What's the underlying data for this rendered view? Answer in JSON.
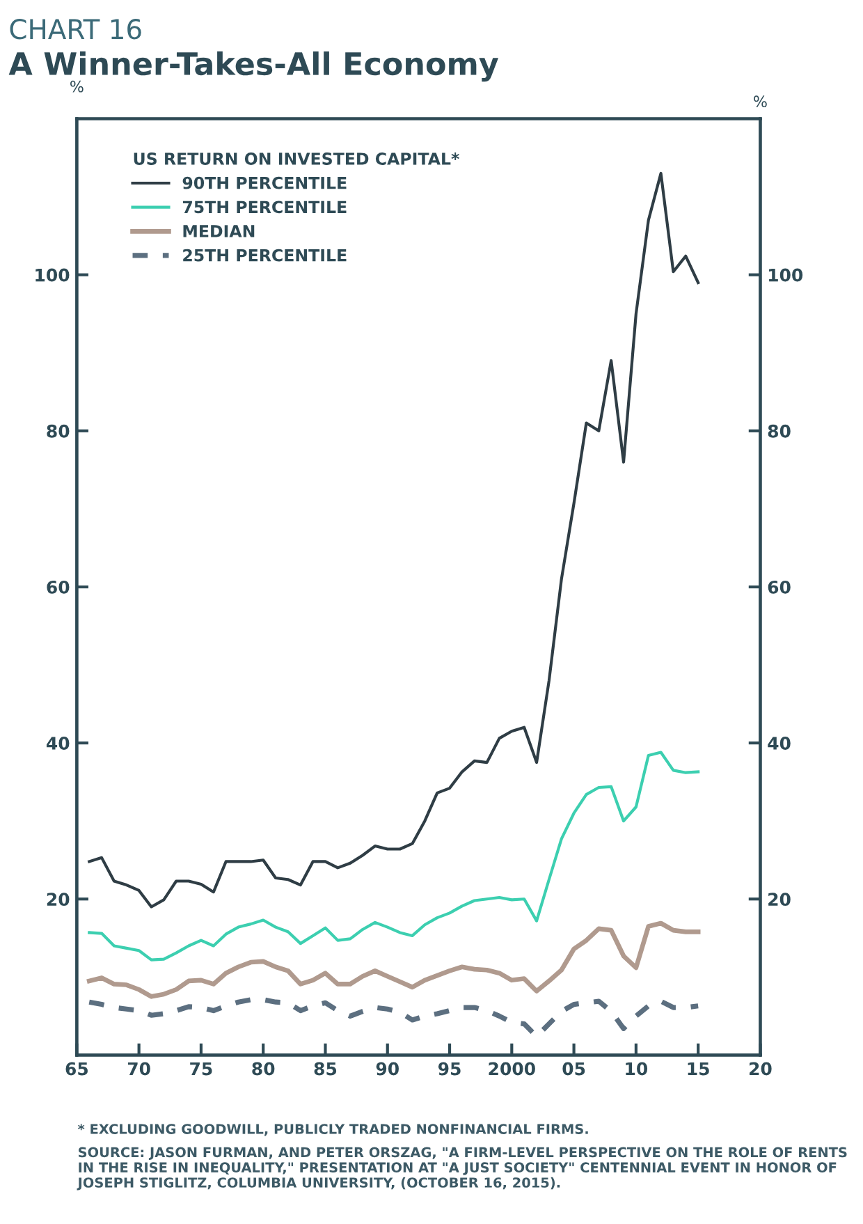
{
  "chart_data": {
    "type": "line",
    "subtitle": "CHART 16",
    "title": "A Winner-Takes-All Economy",
    "ylabel": "%",
    "y2label": "%",
    "legend_title": "US RETURN ON INVESTED CAPITAL*",
    "x": [
      1966,
      1967,
      1968,
      1969,
      1970,
      1971,
      1972,
      1973,
      1974,
      1975,
      1976,
      1977,
      1978,
      1979,
      1980,
      1981,
      1982,
      1983,
      1984,
      1985,
      1986,
      1987,
      1988,
      1989,
      1990,
      1991,
      1992,
      1993,
      1994,
      1995,
      1996,
      1997,
      1998,
      1999,
      2000,
      2001,
      2002,
      2003,
      2004,
      2005,
      2006,
      2007,
      2008,
      2009,
      2010,
      2011,
      2012,
      2013,
      2014,
      2015
    ],
    "series": [
      {
        "name": "90TH PERCENTILE",
        "color": "#2f3d45",
        "line_style": "solid",
        "values": [
          24.8,
          25.3,
          22.3,
          21.8,
          21.1,
          19,
          19.9,
          22.3,
          22.3,
          21.9,
          20.9,
          24.8,
          24.8,
          24.8,
          25,
          22.7,
          22.5,
          21.8,
          24.8,
          24.8,
          24,
          24.6,
          25.6,
          26.8,
          26.4,
          26.4,
          27.1,
          30,
          33.6,
          34.2,
          36.3,
          37.7,
          37.5,
          40.6,
          41.5,
          42,
          37.5,
          48,
          61,
          70.7,
          81,
          80,
          89,
          76,
          95,
          107,
          113,
          100.4,
          102.4,
          99
        ]
      },
      {
        "name": "75TH PERCENTILE",
        "color": "#3ccfb0",
        "line_style": "solid",
        "values": [
          15.7,
          15.6,
          14,
          13.7,
          13.4,
          12.2,
          12.3,
          13.1,
          14,
          14.7,
          14,
          15.5,
          16.4,
          16.8,
          17.3,
          16.4,
          15.8,
          14.3,
          15.3,
          16.3,
          14.7,
          14.9,
          16.1,
          17,
          16.4,
          15.7,
          15.3,
          16.7,
          17.6,
          18.2,
          19.1,
          19.8,
          20,
          20.2,
          19.9,
          20,
          17.2,
          22.5,
          27.7,
          31,
          33.4,
          34.3,
          34.4,
          30,
          31.8,
          38.4,
          38.8,
          36.5,
          36.2,
          36.3
        ]
      },
      {
        "name": "MEDIAN",
        "color": "#b09a8e",
        "line_style": "solid",
        "values": [
          9.5,
          9.9,
          9.1,
          9,
          8.4,
          7.5,
          7.8,
          8.4,
          9.5,
          9.6,
          9.1,
          10.5,
          11.3,
          11.9,
          12,
          11.3,
          10.8,
          9.1,
          9.6,
          10.5,
          9.1,
          9.1,
          10.1,
          10.8,
          10.1,
          9.4,
          8.7,
          9.6,
          10.2,
          10.8,
          11.3,
          11,
          10.9,
          10.5,
          9.6,
          9.8,
          8.2,
          9.5,
          10.9,
          13.6,
          14.7,
          16.2,
          16,
          12.7,
          11.2,
          16.5,
          16.9,
          16,
          15.8,
          15.8
        ]
      },
      {
        "name": "25TH PERCENTILE",
        "color": "#5c6f80",
        "line_style": "dashed",
        "values": [
          6.8,
          6.5,
          6.1,
          5.9,
          5.7,
          5.1,
          5.3,
          5.7,
          6.2,
          6.1,
          5.7,
          6.3,
          6.8,
          7.1,
          7.1,
          6.8,
          6.7,
          5.7,
          6.3,
          6.7,
          5.7,
          5,
          5.6,
          6.1,
          5.9,
          5.5,
          4.5,
          5,
          5.3,
          5.7,
          6.1,
          6.1,
          5.7,
          5,
          4.2,
          4,
          2.4,
          4,
          5.6,
          6.5,
          6.7,
          6.9,
          5.6,
          3.4,
          5,
          6.3,
          6.9,
          6.1,
          6.1,
          6.3
        ]
      }
    ],
    "xlim": [
      1965,
      2020
    ],
    "xticks": [
      {
        "value": 1965,
        "label": "65"
      },
      {
        "value": 1970,
        "label": "70"
      },
      {
        "value": 1975,
        "label": "75"
      },
      {
        "value": 1980,
        "label": "80"
      },
      {
        "value": 1985,
        "label": "85"
      },
      {
        "value": 1990,
        "label": "90"
      },
      {
        "value": 1995,
        "label": "95"
      },
      {
        "value": 2000,
        "label": "2000"
      },
      {
        "value": 2005,
        "label": "05"
      },
      {
        "value": 2010,
        "label": "10"
      },
      {
        "value": 2015,
        "label": "15"
      },
      {
        "value": 2020,
        "label": "20"
      }
    ],
    "ylim": [
      0,
      120
    ],
    "yticks": [
      20,
      40,
      60,
      80,
      100
    ],
    "y2lim": [
      0,
      120
    ],
    "y2ticks": [
      20,
      40,
      60,
      80,
      100
    ],
    "legend": "top left",
    "annotations": [
      "* EXCLUDING GOODWILL, PUBLICLY TRADED NONFINANCIAL FIRMS.",
      "SOURCE: JASON FURMAN, AND PETER ORSZAG, \"A FIRM-LEVEL PERSPECTIVE ON THE ROLE OF RENTS IN THE RISE IN INEQUALITY,\" PRESENTATION AT \"A JUST SOCIETY\" CENTENNIAL EVENT IN HONOR OF JOSEPH STIGLITZ, COLUMBIA UNIVERSITY, (OCTOBER 16, 2015)."
    ]
  }
}
